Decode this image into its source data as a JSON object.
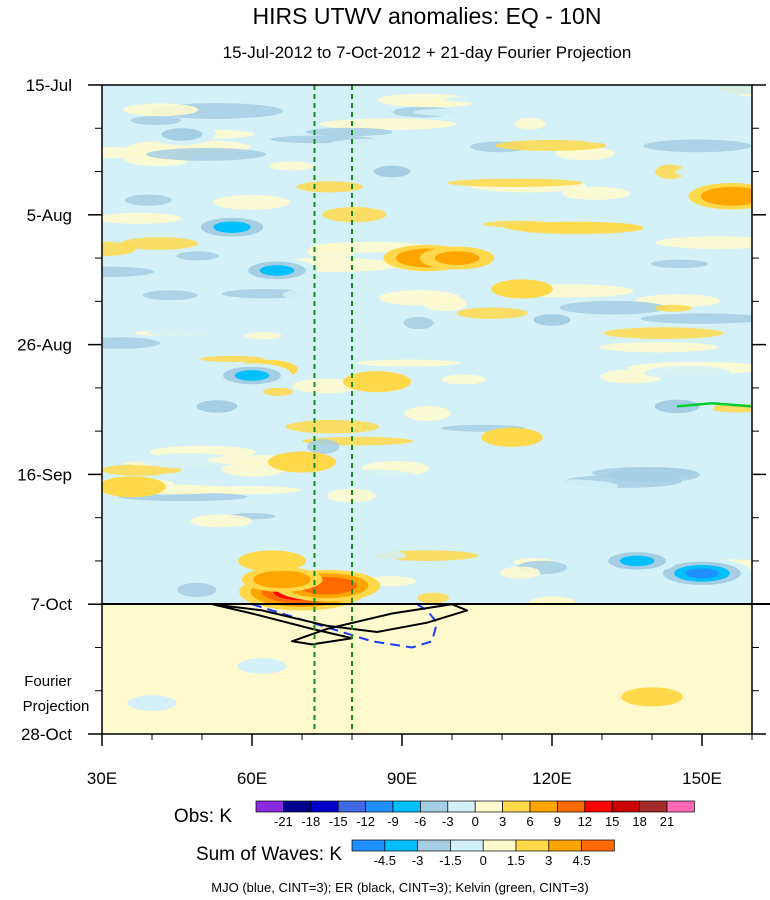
{
  "chart_data": {
    "type": "heatmap",
    "title": "HIRS UTWV anomalies: EQ - 10N",
    "subtitle": "15-Jul-2012 to 7-Oct-2012 + 21-day Fourier Projection",
    "xlabel": "",
    "ylabel": "",
    "x_range": [
      30,
      160
    ],
    "x_ticks": [
      30,
      60,
      90,
      120,
      150
    ],
    "x_tick_labels": [
      "30E",
      "60E",
      "90E",
      "120E",
      "150E"
    ],
    "y_tick_labels": [
      "15-Jul",
      "5-Aug",
      "26-Aug",
      "16-Sep",
      "7-Oct",
      "28-Oct"
    ],
    "y_tick_days": [
      0,
      21,
      42,
      63,
      84,
      105
    ],
    "total_days": 105,
    "projection_start_day": 84,
    "projection_label": [
      "Fourier",
      "Projection"
    ],
    "mjo_lines_lon": [
      72.5,
      80
    ],
    "obs_colorbar": {
      "label": "Obs: K",
      "levels": [
        "-21",
        "-18",
        "-15",
        "-12",
        "-9",
        "-6",
        "-3",
        "0",
        "3",
        "6",
        "9",
        "12",
        "15",
        "18",
        "21"
      ],
      "colors": [
        "#8a2be2",
        "#00008b",
        "#0000cd",
        "#4169e1",
        "#1e90ff",
        "#00bfff",
        "#a6cee3",
        "#d4f1f9",
        "#fffacd",
        "#ffd94a",
        "#ffa500",
        "#ff6a00",
        "#ff0000",
        "#cd0000",
        "#a52a2a",
        "#ff69b4"
      ]
    },
    "waves_colorbar": {
      "label": "Sum of Waves: K",
      "levels": [
        "-4.5",
        "-3",
        "-1.5",
        "0",
        "1.5",
        "3",
        "4.5"
      ],
      "colors": [
        "#1e90ff",
        "#00bfff",
        "#a6cee3",
        "#d4f1f9",
        "#fffacd",
        "#ffd94a",
        "#ffa500",
        "#ff6a00"
      ]
    },
    "legend_note": "MJO (blue, CINT=3); ER (black, CINT=3); Kelvin (green, CINT=3)",
    "anomaly_features": [
      {
        "lon": 70,
        "day": 82,
        "value": 14
      },
      {
        "lon": 75,
        "day": 81,
        "value": 11
      },
      {
        "lon": 66,
        "day": 80,
        "value": 7
      },
      {
        "lon": 64,
        "day": 77,
        "value": 5
      },
      {
        "lon": 95,
        "day": 28,
        "value": 8
      },
      {
        "lon": 101,
        "day": 28,
        "value": 6
      },
      {
        "lon": 114,
        "day": 33,
        "value": 4
      },
      {
        "lon": 156,
        "day": 18,
        "value": 8
      },
      {
        "lon": 85,
        "day": 48,
        "value": 5
      },
      {
        "lon": 63,
        "day": 46,
        "value": 4
      },
      {
        "lon": 70,
        "day": 61,
        "value": 5
      },
      {
        "lon": 36,
        "day": 65,
        "value": 5
      },
      {
        "lon": 112,
        "day": 57,
        "value": 4
      },
      {
        "lon": 120,
        "day": 84,
        "value": 2
      },
      {
        "lon": 140,
        "day": 99,
        "value": 4
      },
      {
        "lon": 46,
        "day": 8,
        "value": -5
      },
      {
        "lon": 56,
        "day": 23,
        "value": -8
      },
      {
        "lon": 65,
        "day": 30,
        "value": -7
      },
      {
        "lon": 60,
        "day": 47,
        "value": -7
      },
      {
        "lon": 53,
        "day": 52,
        "value": -5
      },
      {
        "lon": 150,
        "day": 79,
        "value": -10
      },
      {
        "lon": 137,
        "day": 77,
        "value": -7
      },
      {
        "lon": 145,
        "day": 52,
        "value": -6
      },
      {
        "lon": 120,
        "day": 38,
        "value": -4
      },
      {
        "lon": 88,
        "day": 14,
        "value": -4
      },
      {
        "lon": 130,
        "day": 8,
        "value": -3
      },
      {
        "lon": 62,
        "day": 94,
        "value": -2
      },
      {
        "lon": 40,
        "day": 100,
        "value": -2
      }
    ],
    "er_contour": {
      "color": "black",
      "points": [
        [
          52,
          84
        ],
        [
          62,
          85
        ],
        [
          75,
          87.5
        ],
        [
          85,
          88.5
        ],
        [
          95,
          87
        ],
        [
          103,
          85
        ],
        [
          100,
          84
        ],
        [
          88,
          85.5
        ],
        [
          75,
          88
        ],
        [
          68,
          90
        ],
        [
          72,
          90.5
        ],
        [
          80,
          89.5
        ],
        [
          72,
          88
        ],
        [
          60,
          85.5
        ]
      ]
    },
    "mjo_contour": {
      "color": "blue",
      "style": "dashed",
      "points": [
        [
          60,
          84
        ],
        [
          68,
          86
        ],
        [
          76,
          88
        ],
        [
          84,
          90
        ],
        [
          92,
          91
        ],
        [
          96,
          90
        ],
        [
          97,
          87
        ],
        [
          95,
          85
        ],
        [
          93,
          84
        ]
      ]
    },
    "kelvin_contour": {
      "color": "green",
      "points": [
        [
          145,
          52
        ],
        [
          152,
          51.5
        ],
        [
          160,
          52
        ]
      ]
    }
  }
}
